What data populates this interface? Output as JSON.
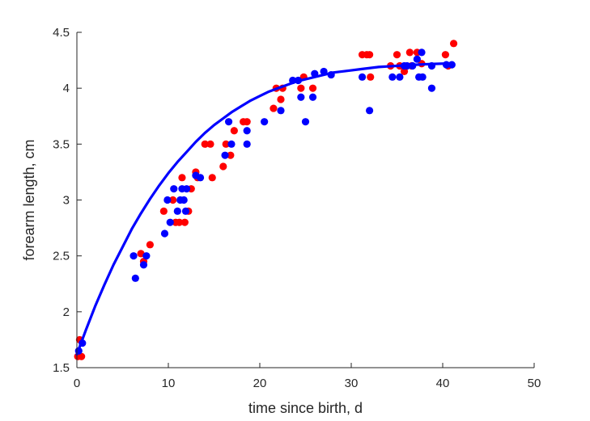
{
  "chart_data": {
    "type": "scatter",
    "title": "",
    "xlabel": "time since birth, d",
    "ylabel": "forearm length, cm",
    "xlim": [
      0,
      50
    ],
    "ylim": [
      1.5,
      4.5
    ],
    "xticks": [
      0,
      10,
      20,
      30,
      40,
      50
    ],
    "yticks": [
      1.5,
      2,
      2.5,
      3,
      3.5,
      4,
      4.5
    ],
    "grid": false,
    "legend": false,
    "series": [
      {
        "color": "#ff0000",
        "kind": "scatter",
        "points": [
          [
            0.1,
            1.6
          ],
          [
            0.3,
            1.75
          ],
          [
            0.5,
            1.6
          ],
          [
            7.0,
            2.52
          ],
          [
            7.3,
            2.45
          ],
          [
            8.0,
            2.6
          ],
          [
            9.5,
            2.9
          ],
          [
            10.5,
            3.0
          ],
          [
            10.8,
            2.8
          ],
          [
            11.2,
            2.8
          ],
          [
            11.5,
            3.2
          ],
          [
            11.8,
            2.8
          ],
          [
            12.2,
            2.9
          ],
          [
            12.5,
            3.1
          ],
          [
            13.0,
            3.25
          ],
          [
            13.2,
            3.2
          ],
          [
            14.0,
            3.5
          ],
          [
            14.6,
            3.5
          ],
          [
            14.8,
            3.2
          ],
          [
            16.0,
            3.3
          ],
          [
            16.3,
            3.5
          ],
          [
            16.8,
            3.4
          ],
          [
            17.2,
            3.62
          ],
          [
            18.2,
            3.7
          ],
          [
            18.6,
            3.7
          ],
          [
            21.5,
            3.82
          ],
          [
            21.8,
            4.0
          ],
          [
            22.3,
            3.9
          ],
          [
            22.5,
            4.0
          ],
          [
            24.5,
            4.0
          ],
          [
            24.8,
            4.1
          ],
          [
            25.8,
            4.0
          ],
          [
            31.2,
            4.3
          ],
          [
            31.7,
            4.3
          ],
          [
            32.0,
            4.3
          ],
          [
            32.1,
            4.1
          ],
          [
            34.3,
            4.2
          ],
          [
            35.0,
            4.3
          ],
          [
            35.3,
            4.2
          ],
          [
            35.8,
            4.15
          ],
          [
            36.4,
            4.32
          ],
          [
            36.6,
            4.2
          ],
          [
            37.2,
            4.32
          ],
          [
            37.7,
            4.22
          ],
          [
            40.3,
            4.3
          ],
          [
            40.6,
            4.2
          ],
          [
            41.2,
            4.4
          ]
        ]
      },
      {
        "color": "#0000ff",
        "kind": "scatter",
        "points": [
          [
            0.2,
            1.65
          ],
          [
            0.6,
            1.72
          ],
          [
            6.2,
            2.5
          ],
          [
            6.4,
            2.3
          ],
          [
            7.3,
            2.42
          ],
          [
            7.6,
            2.5
          ],
          [
            9.6,
            2.7
          ],
          [
            9.9,
            3.0
          ],
          [
            10.2,
            2.8
          ],
          [
            10.6,
            3.1
          ],
          [
            11.0,
            2.9
          ],
          [
            11.3,
            3.0
          ],
          [
            11.5,
            3.1
          ],
          [
            11.7,
            3.0
          ],
          [
            11.9,
            2.9
          ],
          [
            12.0,
            3.1
          ],
          [
            13.0,
            3.22
          ],
          [
            13.5,
            3.2
          ],
          [
            16.2,
            3.4
          ],
          [
            16.6,
            3.7
          ],
          [
            16.9,
            3.5
          ],
          [
            18.6,
            3.62
          ],
          [
            18.6,
            3.5
          ],
          [
            20.5,
            3.7
          ],
          [
            22.3,
            3.8
          ],
          [
            23.6,
            4.07
          ],
          [
            24.2,
            4.07
          ],
          [
            24.5,
            3.92
          ],
          [
            25.0,
            3.7
          ],
          [
            25.8,
            3.92
          ],
          [
            26.0,
            4.13
          ],
          [
            27.0,
            4.15
          ],
          [
            27.8,
            4.12
          ],
          [
            31.2,
            4.1
          ],
          [
            32.0,
            3.8
          ],
          [
            34.5,
            4.1
          ],
          [
            35.3,
            4.1
          ],
          [
            35.8,
            4.2
          ],
          [
            36.1,
            4.2
          ],
          [
            36.7,
            4.2
          ],
          [
            37.2,
            4.26
          ],
          [
            37.4,
            4.1
          ],
          [
            37.7,
            4.32
          ],
          [
            37.8,
            4.1
          ],
          [
            38.8,
            4.2
          ],
          [
            38.8,
            4.0
          ],
          [
            40.4,
            4.21
          ],
          [
            41.0,
            4.21
          ]
        ]
      },
      {
        "color": "#0000ff",
        "kind": "line",
        "points": [
          [
            0,
            1.62
          ],
          [
            1,
            1.84
          ],
          [
            2,
            2.05
          ],
          [
            3,
            2.24
          ],
          [
            4,
            2.42
          ],
          [
            5,
            2.58
          ],
          [
            6,
            2.74
          ],
          [
            7,
            2.88
          ],
          [
            8,
            3.01
          ],
          [
            9,
            3.13
          ],
          [
            10,
            3.24
          ],
          [
            11,
            3.34
          ],
          [
            12,
            3.43
          ],
          [
            13,
            3.52
          ],
          [
            14,
            3.6
          ],
          [
            15,
            3.67
          ],
          [
            16,
            3.73
          ],
          [
            17,
            3.79
          ],
          [
            18,
            3.84
          ],
          [
            19,
            3.89
          ],
          [
            20,
            3.93
          ],
          [
            21,
            3.97
          ],
          [
            22,
            4.0
          ],
          [
            23,
            4.03
          ],
          [
            24,
            4.06
          ],
          [
            25,
            4.08
          ],
          [
            26,
            4.1
          ],
          [
            27,
            4.12
          ],
          [
            28,
            4.14
          ],
          [
            29,
            4.15
          ],
          [
            30,
            4.16
          ],
          [
            31,
            4.17
          ],
          [
            32,
            4.18
          ],
          [
            33,
            4.19
          ],
          [
            34,
            4.195
          ],
          [
            35,
            4.2
          ],
          [
            36,
            4.205
          ],
          [
            37,
            4.21
          ],
          [
            38,
            4.214
          ],
          [
            39,
            4.217
          ],
          [
            40,
            4.22
          ],
          [
            41,
            4.222
          ]
        ]
      }
    ]
  }
}
